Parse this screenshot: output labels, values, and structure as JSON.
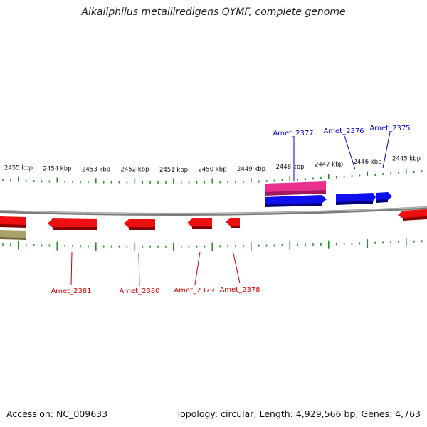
{
  "title": "Alkaliphilus metalliredigens QYMF, complete genome",
  "footer": {
    "accession": "Accession: NC_009633",
    "summary": "Topology: circular; Length: 4,929,566 bp; Genes: 4,763"
  },
  "colors": {
    "backbone": "#8a8a8a",
    "tick": "#2a8a2a",
    "forward_gene": "#0000ee",
    "reverse_gene": "#ee0000",
    "pink_feature": "#e8308c",
    "olive_feature": "#a8a268",
    "forward_label": "#0000cc",
    "reverse_label": "#cc0000"
  },
  "scale_labels": [
    {
      "kbp": 2455,
      "text": "2455 kbp"
    },
    {
      "kbp": 2454,
      "text": "2454 kbp"
    },
    {
      "kbp": 2453,
      "text": "2453 kbp"
    },
    {
      "kbp": 2452,
      "text": "2452 kbp"
    },
    {
      "kbp": 2451,
      "text": "2451 kbp"
    },
    {
      "kbp": 2450,
      "text": "2450 kbp"
    },
    {
      "kbp": 2449,
      "text": "2449 kbp"
    },
    {
      "kbp": 2448,
      "text": "2448 kbp"
    },
    {
      "kbp": 2447,
      "text": "2447 kbp"
    },
    {
      "kbp": 2446,
      "text": "2446 kbp"
    },
    {
      "kbp": 2445,
      "text": "2445 kbp"
    }
  ],
  "gene_labels": [
    {
      "name": "Amet_2377",
      "strand": "forward"
    },
    {
      "name": "Amet_2376",
      "strand": "forward"
    },
    {
      "name": "Amet_2375",
      "strand": "forward"
    },
    {
      "name": "Amet_2381",
      "strand": "reverse"
    },
    {
      "name": "Amet_2380",
      "strand": "reverse"
    },
    {
      "name": "Amet_2379",
      "strand": "reverse"
    },
    {
      "name": "Amet_2378",
      "strand": "reverse"
    }
  ]
}
